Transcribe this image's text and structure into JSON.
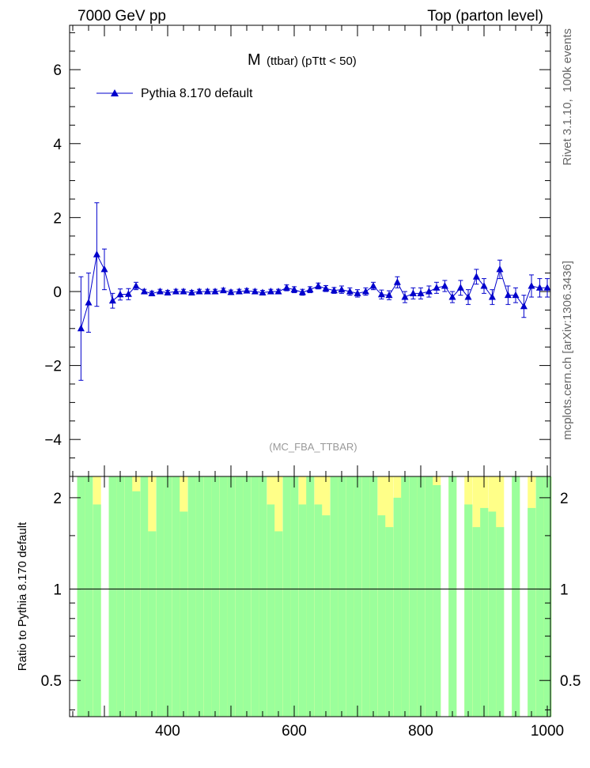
{
  "header": {
    "left": "7000 GeV pp",
    "right": "Top (parton level)"
  },
  "side_labels": {
    "rivet": "Rivet 3.1.10,  100k events",
    "mcplots": "mcplots.cern.ch [arXiv:1306.3436]"
  },
  "colors": {
    "series": "#0000cc",
    "band_inner": "#9bff9b",
    "band_outer": "#ffff88"
  },
  "chart_data": [
    {
      "type": "line",
      "title_main": "M",
      "title_sub": "(ttbar) (pTtt < 50)",
      "watermark": "(MC_FBA_TTBAR)",
      "xlim": [
        245,
        1005
      ],
      "ylim": [
        -5,
        7.2
      ],
      "y_ticks": [
        -4,
        -2,
        0,
        2,
        4,
        6
      ],
      "y_tick_labels": [
        "−4",
        "−2",
        "0",
        "2",
        "4",
        "6"
      ],
      "legend_position": "top-left",
      "series": [
        {
          "name": "Pythia 8.170 default",
          "x": [
            263,
            275,
            288,
            300,
            313,
            325,
            338,
            350,
            363,
            375,
            388,
            400,
            413,
            425,
            438,
            450,
            463,
            475,
            488,
            500,
            513,
            525,
            538,
            550,
            563,
            575,
            588,
            600,
            613,
            625,
            638,
            650,
            663,
            675,
            688,
            700,
            713,
            725,
            738,
            750,
            763,
            775,
            788,
            800,
            813,
            825,
            838,
            850,
            863,
            875,
            888,
            900,
            913,
            925,
            938,
            950,
            963,
            975,
            988,
            1000
          ],
          "y": [
            -1.0,
            -0.3,
            1.0,
            0.6,
            -0.25,
            -0.08,
            -0.07,
            0.15,
            0.0,
            -0.05,
            0.0,
            -0.03,
            0.0,
            0.0,
            -0.03,
            0.0,
            0.0,
            0.0,
            0.03,
            -0.02,
            0.0,
            0.02,
            0.0,
            -0.03,
            0.0,
            0.0,
            0.1,
            0.05,
            -0.02,
            0.05,
            0.15,
            0.08,
            0.03,
            0.05,
            0.0,
            -0.05,
            0.0,
            0.15,
            -0.08,
            -0.1,
            0.25,
            -0.15,
            -0.05,
            -0.05,
            0.0,
            0.1,
            0.15,
            -0.15,
            0.1,
            -0.15,
            0.4,
            0.15,
            -0.15,
            0.6,
            -0.1,
            -0.1,
            -0.4,
            0.15,
            0.1,
            0.1
          ],
          "err": [
            1.4,
            0.8,
            1.4,
            0.55,
            0.2,
            0.15,
            0.15,
            0.1,
            0.06,
            0.06,
            0.06,
            0.06,
            0.06,
            0.06,
            0.06,
            0.06,
            0.06,
            0.06,
            0.06,
            0.06,
            0.06,
            0.06,
            0.06,
            0.06,
            0.06,
            0.06,
            0.08,
            0.08,
            0.08,
            0.08,
            0.08,
            0.08,
            0.08,
            0.1,
            0.1,
            0.1,
            0.1,
            0.1,
            0.12,
            0.12,
            0.15,
            0.15,
            0.15,
            0.15,
            0.15,
            0.15,
            0.15,
            0.15,
            0.2,
            0.2,
            0.2,
            0.2,
            0.2,
            0.25,
            0.25,
            0.2,
            0.3,
            0.3,
            0.25,
            0.25
          ]
        }
      ]
    },
    {
      "type": "area",
      "ylabel": "Ratio to Pythia 8.170 default",
      "xlim": [
        245,
        1005
      ],
      "ylim": [
        0.38,
        2.35
      ],
      "log_y": true,
      "x_ticks": [
        400,
        600,
        800,
        1000
      ],
      "y_ticks": [
        0.5,
        1,
        2
      ],
      "reference_line": 1.0,
      "bins": {
        "x": [
          263,
          275,
          288,
          300,
          313,
          325,
          338,
          350,
          363,
          375,
          388,
          400,
          413,
          425,
          438,
          450,
          463,
          475,
          488,
          500,
          513,
          525,
          538,
          550,
          563,
          575,
          588,
          600,
          613,
          625,
          638,
          650,
          663,
          675,
          688,
          700,
          713,
          725,
          738,
          750,
          763,
          775,
          788,
          800,
          813,
          825,
          838,
          850,
          863,
          875,
          888,
          900,
          913,
          925,
          938,
          950,
          963,
          975,
          988,
          1000
        ],
        "inner_lo": [
          0.38,
          0.38,
          0.38,
          0.38,
          0.38,
          0.38,
          0.38,
          0.38,
          0.38,
          0.38,
          0.38,
          0.38,
          0.38,
          0.38,
          0.38,
          0.38,
          0.38,
          0.38,
          0.38,
          0.38,
          0.38,
          0.38,
          0.38,
          0.38,
          0.38,
          0.38,
          0.38,
          0.38,
          0.38,
          0.38,
          0.38,
          0.38,
          0.38,
          0.38,
          0.38,
          0.38,
          0.38,
          0.38,
          0.38,
          0.38,
          0.38,
          0.38,
          0.38,
          0.38,
          0.38,
          0.38,
          0.38,
          0.38,
          0.38,
          0.38,
          0.38,
          0.38,
          0.38,
          0.38,
          0.38,
          0.38,
          0.38,
          0.38,
          0.38,
          0.38
        ],
        "inner_hi": [
          2.35,
          2.35,
          1.9,
          2.35,
          2.35,
          2.35,
          2.35,
          2.1,
          2.35,
          1.55,
          2.35,
          2.35,
          2.35,
          1.8,
          2.35,
          2.35,
          2.35,
          2.35,
          2.35,
          2.35,
          2.35,
          2.35,
          2.35,
          2.35,
          1.9,
          1.55,
          2.35,
          2.35,
          1.9,
          2.35,
          1.9,
          1.75,
          2.35,
          2.35,
          2.35,
          2.35,
          2.35,
          2.35,
          1.75,
          1.6,
          2.0,
          2.35,
          2.35,
          2.35,
          2.35,
          2.2,
          2.35,
          2.35,
          2.1,
          1.9,
          1.6,
          1.85,
          1.8,
          1.6,
          2.35,
          2.35,
          2.35,
          1.85,
          2.35,
          2.35
        ],
        "outer_lo": [
          0.38,
          0.38,
          0.38,
          0.38,
          0.38,
          0.38,
          0.38,
          0.38,
          0.38,
          0.38,
          0.38,
          0.38,
          0.38,
          0.38,
          0.38,
          0.38,
          0.38,
          0.38,
          0.38,
          0.38,
          0.38,
          0.38,
          0.38,
          0.38,
          0.38,
          0.38,
          0.38,
          0.38,
          0.38,
          0.38,
          0.38,
          0.38,
          0.38,
          0.38,
          0.38,
          0.38,
          0.38,
          0.38,
          0.38,
          0.38,
          0.38,
          0.38,
          0.38,
          0.38,
          0.38,
          0.38,
          0.38,
          0.38,
          0.38,
          0.38,
          0.38,
          0.38,
          0.38,
          0.38,
          0.38,
          0.38,
          0.38,
          0.38,
          0.38,
          0.38
        ],
        "outer_hi": [
          2.35,
          2.35,
          2.35,
          2.35,
          2.35,
          2.35,
          2.35,
          2.35,
          2.35,
          2.35,
          2.35,
          2.35,
          2.35,
          2.35,
          2.35,
          2.35,
          2.35,
          2.35,
          2.35,
          2.35,
          2.35,
          2.35,
          2.35,
          2.35,
          2.35,
          2.35,
          2.35,
          2.35,
          2.35,
          2.35,
          2.35,
          2.35,
          2.35,
          2.35,
          2.35,
          2.35,
          2.35,
          2.35,
          2.35,
          2.35,
          2.35,
          2.35,
          2.35,
          2.35,
          2.35,
          2.35,
          2.35,
          2.35,
          2.35,
          2.35,
          2.35,
          2.35,
          2.35,
          2.35,
          2.35,
          2.35,
          2.35,
          2.35,
          2.35,
          2.35
        ],
        "gap": [
          0,
          0,
          0,
          1,
          0,
          0,
          0,
          0,
          0,
          0,
          0,
          0,
          0,
          0,
          0,
          0,
          0,
          0,
          0,
          0,
          0,
          0,
          0,
          0,
          0,
          0,
          0,
          0,
          0,
          0,
          0,
          0,
          0,
          0,
          0,
          0,
          0,
          0,
          0,
          0,
          0,
          0,
          0,
          0,
          0,
          0,
          1,
          0,
          1,
          0,
          0,
          0,
          0,
          0,
          1,
          0,
          1,
          0,
          0,
          0
        ]
      }
    }
  ]
}
